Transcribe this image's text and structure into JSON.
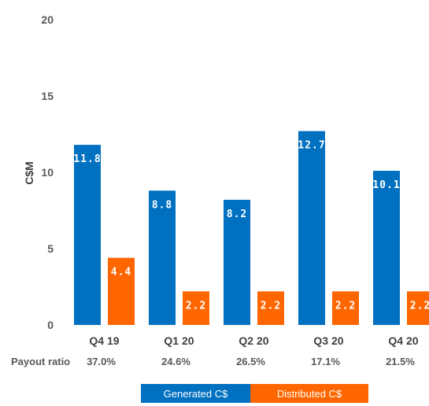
{
  "chart_data": {
    "type": "bar",
    "ylabel": "C$M",
    "ylim": [
      0,
      20
    ],
    "yticks": [
      "0",
      "5",
      "10",
      "15",
      "20"
    ],
    "categories": [
      "Q4 19",
      "Q1 20",
      "Q2 20",
      "Q3 20",
      "Q4 20"
    ],
    "series": [
      {
        "name": "Generated C$",
        "values": [
          11.8,
          8.8,
          8.2,
          12.7,
          10.1
        ],
        "color": "#0070C0",
        "labels": [
          "11.8",
          "8.8",
          "8.2",
          "12.7",
          "10.1"
        ]
      },
      {
        "name": "Distributed C$",
        "values": [
          4.4,
          2.2,
          2.2,
          2.2,
          2.2
        ],
        "color": "#FF6600",
        "labels": [
          "4.4",
          "2.2",
          "2.2",
          "2.2",
          "2.2"
        ]
      }
    ],
    "payout_ratio_label": "Payout ratio",
    "payout_ratios": [
      "37.0%",
      "24.6%",
      "26.5%",
      "17.1%",
      "21.5%"
    ],
    "legend_position": "bottom",
    "grid": false
  }
}
